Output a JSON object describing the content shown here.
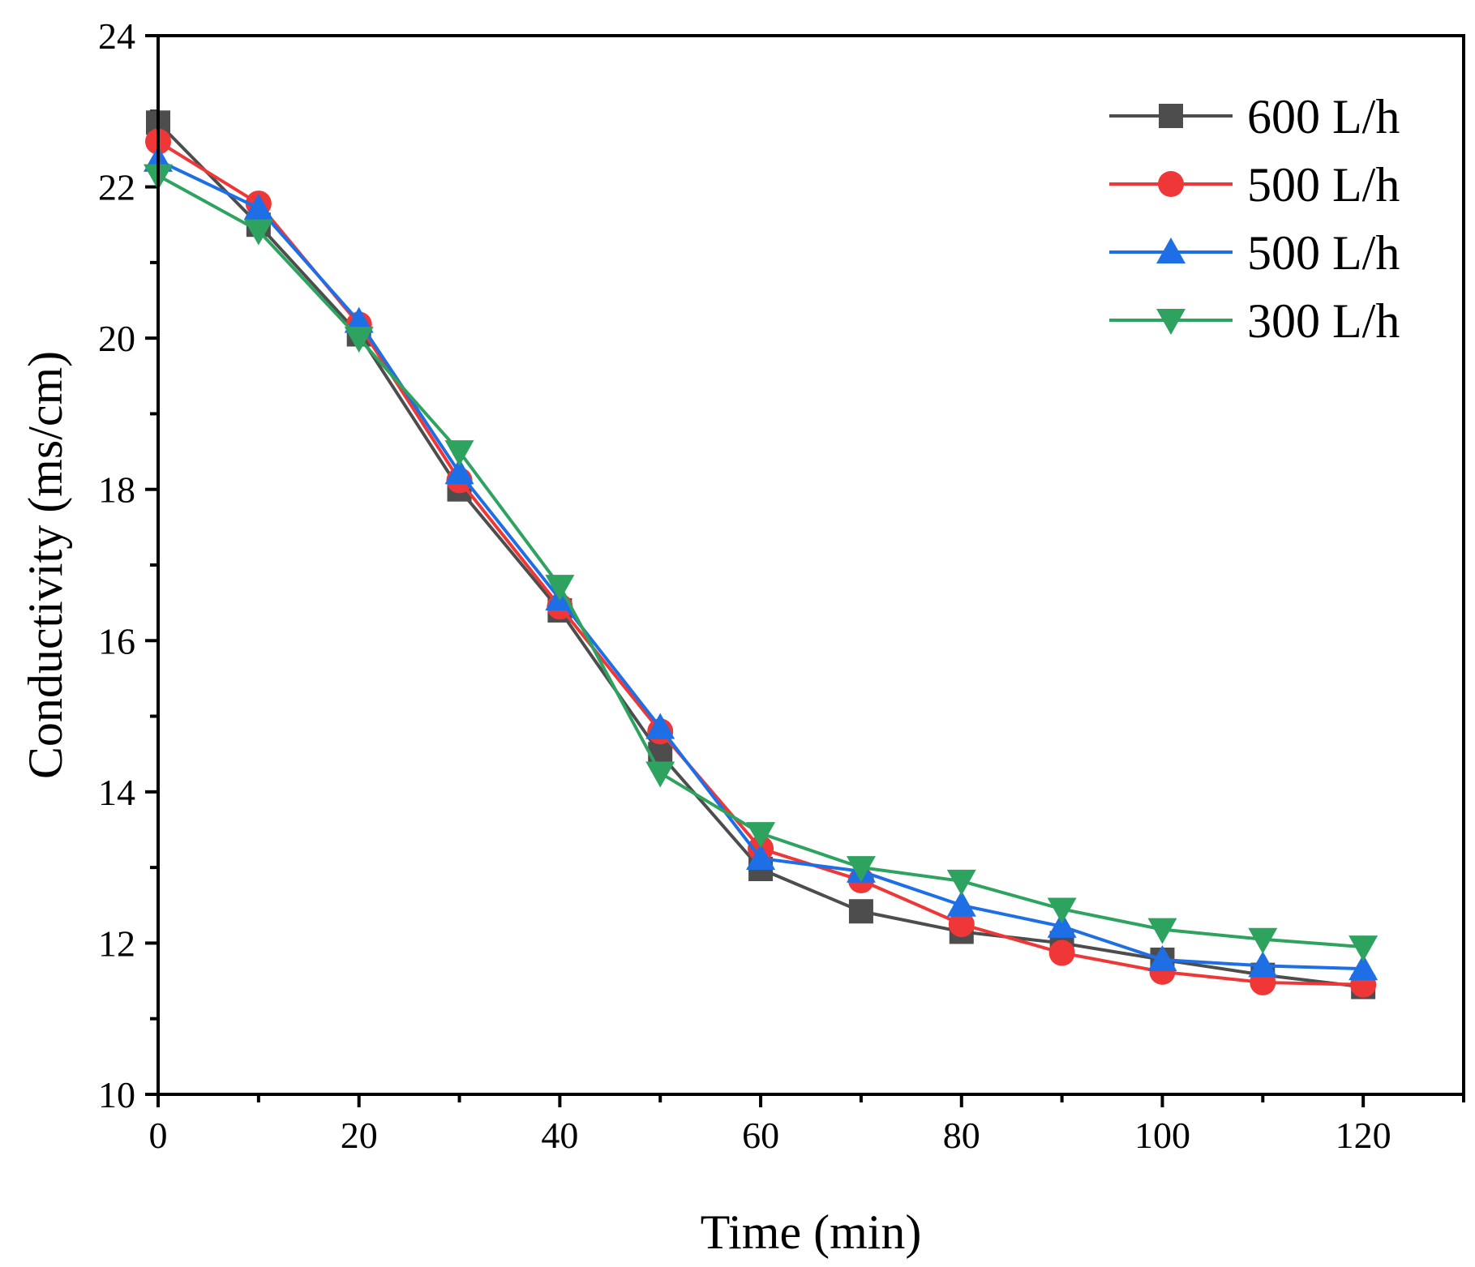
{
  "chart_data": {
    "type": "line",
    "title": "",
    "xlabel": "Time (min)",
    "ylabel": "Conductivity (ms/cm)",
    "xlim": [
      0,
      130
    ],
    "ylim": [
      10,
      24
    ],
    "xticks": [
      0,
      20,
      40,
      60,
      80,
      100,
      120
    ],
    "yticks": [
      10,
      12,
      14,
      16,
      18,
      20,
      22,
      24
    ],
    "xminor": [
      10,
      30,
      50,
      70,
      90,
      110,
      130
    ],
    "yminor": [
      11,
      13,
      15,
      17,
      19,
      21,
      23
    ],
    "grid": false,
    "legend_position": "top-right",
    "x": [
      0,
      10,
      20,
      30,
      40,
      50,
      60,
      70,
      80,
      90,
      100,
      110,
      120
    ],
    "series": [
      {
        "name": "600 L/h",
        "marker": "square",
        "color": "#4d4d4d",
        "values": [
          22.85,
          21.5,
          20.05,
          18.0,
          16.4,
          14.5,
          12.98,
          12.42,
          12.15,
          12.0,
          11.78,
          11.58,
          11.42
        ]
      },
      {
        "name": "500 L/h",
        "marker": "circle",
        "color": "#ef3737",
        "values": [
          22.6,
          21.78,
          20.18,
          18.12,
          16.45,
          14.8,
          13.25,
          12.83,
          12.25,
          11.87,
          11.62,
          11.48,
          11.45
        ]
      },
      {
        "name": "500 L/h",
        "marker": "triangle-up",
        "color": "#1e6ee6",
        "values": [
          22.35,
          21.72,
          20.22,
          18.22,
          16.55,
          14.85,
          13.12,
          12.95,
          12.5,
          12.22,
          11.78,
          11.7,
          11.66
        ]
      },
      {
        "name": "300 L/h",
        "marker": "triangle-down",
        "color": "#2ea35f",
        "values": [
          22.15,
          21.42,
          20.0,
          18.5,
          16.72,
          14.25,
          13.45,
          13.0,
          12.82,
          12.45,
          12.18,
          12.05,
          11.95
        ]
      }
    ]
  }
}
